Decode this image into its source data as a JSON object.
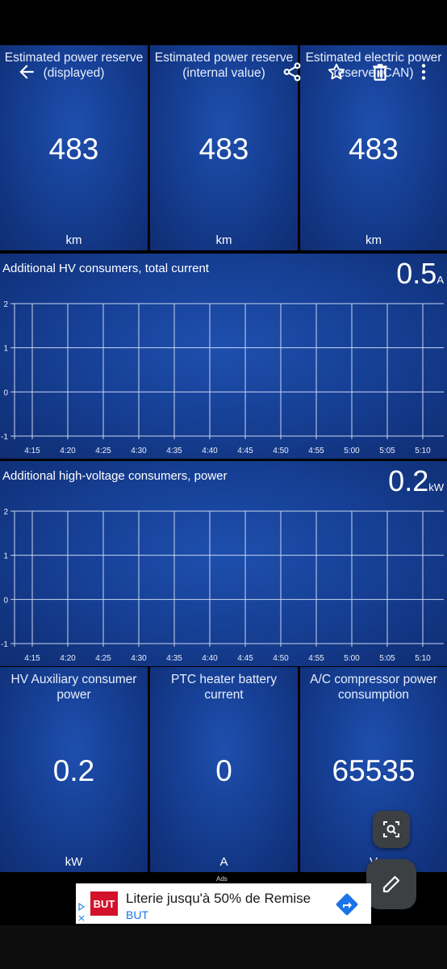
{
  "top_tiles": [
    {
      "title": "Estimated power reserve (displayed)",
      "value": "483",
      "unit": "km"
    },
    {
      "title": "Estimated power reserve (internal value)",
      "value": "483",
      "unit": "km"
    },
    {
      "title": "Estimated electric power reserve (CAN)",
      "value": "483",
      "unit": "km"
    }
  ],
  "toolbar": {
    "back_icon": "arrow-left-icon",
    "share_icon": "share-icon",
    "favorite_icon": "star-outline-icon",
    "delete_icon": "trash-icon",
    "menu_icon": "more-vert-icon"
  },
  "chart_data": [
    {
      "type": "line",
      "title": "Additional HV consumers, total current",
      "current_value": "0.5",
      "unit": "A",
      "x_ticks": [
        "4:15",
        "4:20",
        "4:25",
        "4:30",
        "4:35",
        "4:40",
        "4:45",
        "4:50",
        "4:55",
        "5:00",
        "5:05",
        "5:10"
      ],
      "y_ticks": [
        "2",
        "1",
        "0",
        "-1"
      ],
      "ylim": [
        -1,
        2
      ],
      "series": [],
      "grid": true
    },
    {
      "type": "line",
      "title": "Additional high-voltage consumers, power",
      "current_value": "0.2",
      "unit": "kW",
      "x_ticks": [
        "4:15",
        "4:20",
        "4:25",
        "4:30",
        "4:35",
        "4:40",
        "4:45",
        "4:50",
        "4:55",
        "5:00",
        "5:05",
        "5:10"
      ],
      "y_ticks": [
        "2",
        "1",
        "0",
        "-1"
      ],
      "ylim": [
        -1,
        2
      ],
      "series": [],
      "grid": true
    }
  ],
  "bottom_tiles": [
    {
      "title": "HV Auxiliary consumer power",
      "value": "0.2",
      "unit": "kW"
    },
    {
      "title": "PTC heater battery current",
      "value": "0",
      "unit": "A"
    },
    {
      "title": "A/C compressor power consumption",
      "value": "65535",
      "unit": "V"
    }
  ],
  "fabs": {
    "screenshot_icon": "screenshot-search-icon",
    "edit_icon": "pencil-icon"
  },
  "ad": {
    "label": "Ads",
    "headline": "Literie jusqu'à 50% de Remise",
    "brand": "BUT",
    "logo_text": "BUT",
    "play_icon": "adchoices-play-icon",
    "close_icon": "close-icon",
    "direction_icon": "directions-icon"
  },
  "colors": {
    "tile_center": "#1e4fae",
    "tile_edge": "#0f2d72",
    "grid": "#c9d6f2",
    "ad_logo": "#d3122a",
    "direction": "#1a73e8"
  }
}
